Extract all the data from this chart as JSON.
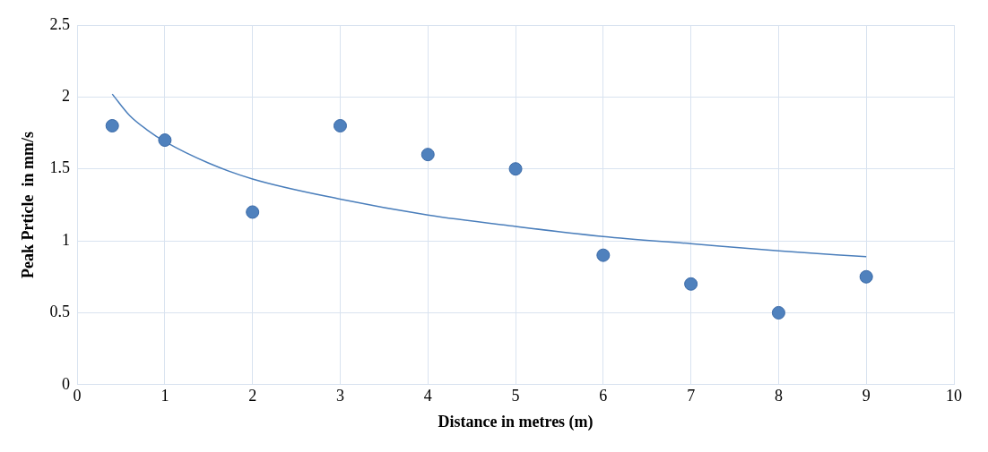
{
  "chart_data": {
    "type": "scatter",
    "xlabel": "Distance in metres (m)",
    "ylabel": "Peak Prticle  in mm/s",
    "xlim": [
      0,
      10
    ],
    "xticks": [
      0,
      1,
      2,
      3,
      4,
      5,
      6,
      7,
      8,
      9,
      10
    ],
    "ylim": [
      0,
      2.5
    ],
    "yticks": [
      0,
      0.5,
      1,
      1.5,
      2,
      2.5
    ],
    "grid": true,
    "legend": false,
    "marker": "circle",
    "series": [
      {
        "type": "scatter",
        "color": "#4f81bd",
        "x": [
          0.4,
          1,
          2,
          3,
          4,
          5,
          6,
          7,
          8,
          9
        ],
        "values": [
          1.8,
          1.7,
          1.2,
          1.8,
          1.6,
          1.5,
          0.9,
          0.7,
          0.5,
          0.75
        ]
      },
      {
        "type": "line",
        "color": "#4a7ebb",
        "marker": "none",
        "line_style": "solid",
        "x": [
          0.4,
          0.6,
          0.8,
          1,
          1.5,
          2,
          3,
          4,
          5,
          6,
          7,
          8,
          9
        ],
        "values": [
          2.02,
          1.87,
          1.77,
          1.69,
          1.54,
          1.43,
          1.29,
          1.18,
          1.1,
          1.03,
          0.98,
          0.93,
          0.89
        ]
      }
    ]
  }
}
